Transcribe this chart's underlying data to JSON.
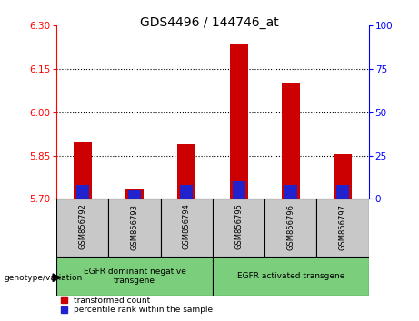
{
  "title": "GDS4496 / 144746_at",
  "samples": [
    "GSM856792",
    "GSM856793",
    "GSM856794",
    "GSM856795",
    "GSM856796",
    "GSM856797"
  ],
  "transformed_count": [
    5.895,
    5.735,
    5.89,
    6.235,
    6.1,
    5.855
  ],
  "percentile_rank": [
    8,
    5,
    8,
    10,
    8,
    8
  ],
  "ylim_left": [
    5.7,
    6.3
  ],
  "ylim_right": [
    0,
    100
  ],
  "yticks_left": [
    5.7,
    5.85,
    6.0,
    6.15,
    6.3
  ],
  "yticks_right": [
    0,
    25,
    50,
    75,
    100
  ],
  "grid_lines": [
    5.85,
    6.0,
    6.15
  ],
  "bar_width": 0.35,
  "red_color": "#cc0000",
  "blue_color": "#2222cc",
  "group1_label": "EGFR dominant negative\ntransgene",
  "group2_label": "EGFR activated transgene",
  "group1_indices": [
    0,
    1,
    2
  ],
  "group2_indices": [
    3,
    4,
    5
  ],
  "genotype_label": "genotype/variation",
  "legend1": "transformed count",
  "legend2": "percentile rank within the sample",
  "base_value": 5.7,
  "percentile_scale_factor": 0.006,
  "group_box_color": "#c8c8c8",
  "green_color": "#7bce7b",
  "title_fontsize": 10
}
